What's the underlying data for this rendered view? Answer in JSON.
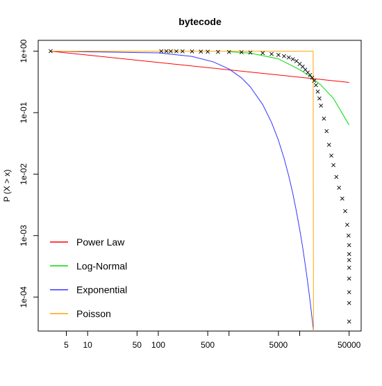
{
  "chart_data": {
    "type": "scatter",
    "title": "bytecode",
    "ylabel": "P (X > x)",
    "xlog": true,
    "ylog": true,
    "xlim": [
      2,
      74000
    ],
    "ylim": [
      2.8e-05,
      1.5
    ],
    "xticks": [
      5,
      10,
      50,
      100,
      500,
      {
        "value": 1000,
        "label": null
      },
      5000,
      {
        "value": 10000,
        "label": null
      },
      50000
    ],
    "yticks": [
      {
        "value": 1,
        "label": "1e+00"
      },
      {
        "value": 0.1,
        "label": "1e-01"
      },
      {
        "value": 0.01,
        "label": "1e-02"
      },
      {
        "value": 0.001,
        "label": "1e-03"
      },
      {
        "value": 0.0001,
        "label": "1e-04"
      }
    ],
    "legend": "bottomleft",
    "points": {
      "color": "#000000",
      "x": [
        3,
        110,
        130,
        150,
        180,
        220,
        300,
        400,
        500,
        700,
        1000,
        1500,
        2000,
        3000,
        4000,
        5000,
        6000,
        7000,
        8000,
        9000,
        10000,
        11000,
        12000,
        13000,
        14000,
        15000,
        16000,
        17000,
        18000,
        19000,
        20000,
        22000,
        24000,
        26000,
        28000,
        30000,
        33000,
        36000,
        40000,
        44000,
        47000,
        49000,
        50000,
        50000,
        50000,
        50000,
        50000,
        50000,
        50000,
        50000
      ],
      "y": [
        1,
        0.998,
        0.997,
        0.996,
        0.995,
        0.994,
        0.99,
        0.985,
        0.98,
        0.975,
        0.97,
        0.96,
        0.95,
        0.93,
        0.9,
        0.87,
        0.83,
        0.79,
        0.74,
        0.69,
        0.62,
        0.56,
        0.5,
        0.45,
        0.41,
        0.37,
        0.33,
        0.28,
        0.22,
        0.17,
        0.13,
        0.08,
        0.05,
        0.03,
        0.02,
        0.014,
        0.009,
        0.006,
        0.004,
        0.0025,
        0.0015,
        0.001,
        0.0007,
        0.0005,
        0.0004,
        0.0003,
        0.0002,
        0.00012,
        8e-05,
        4e-05
      ]
    },
    "series": [
      {
        "name": "Power Law",
        "color": "#ff0000",
        "x": [
          3,
          50000
        ],
        "y": [
          1,
          0.31
        ]
      },
      {
        "name": "Log-Normal",
        "color": "#00dd00",
        "x": [
          1000,
          2000,
          5000,
          10000,
          15000,
          20000,
          30000,
          50000
        ],
        "y": [
          0.98,
          0.93,
          0.75,
          0.5,
          0.37,
          0.28,
          0.17,
          0.063
        ]
      },
      {
        "name": "Exponential",
        "color": "#3333ff",
        "x": [
          3,
          100,
          300,
          600,
          1000,
          1500,
          2000,
          3000,
          4000,
          5000,
          6000,
          7000,
          8000,
          9000,
          10000,
          11000,
          12000,
          13000,
          14000,
          15000,
          15700
        ],
        "y": [
          1,
          0.937,
          0.82,
          0.67,
          0.513,
          0.368,
          0.263,
          0.135,
          0.069,
          0.0355,
          0.0182,
          0.0093,
          0.0048,
          0.00245,
          0.00126,
          0.00065,
          0.00033,
          0.00017,
          8.7e-05,
          4.4e-05,
          2.8e-05
        ]
      },
      {
        "name": "Poisson",
        "color": "#ffa500",
        "x": [
          3,
          15500,
          15670
        ],
        "y": [
          1,
          1,
          2.8e-05
        ]
      }
    ]
  }
}
